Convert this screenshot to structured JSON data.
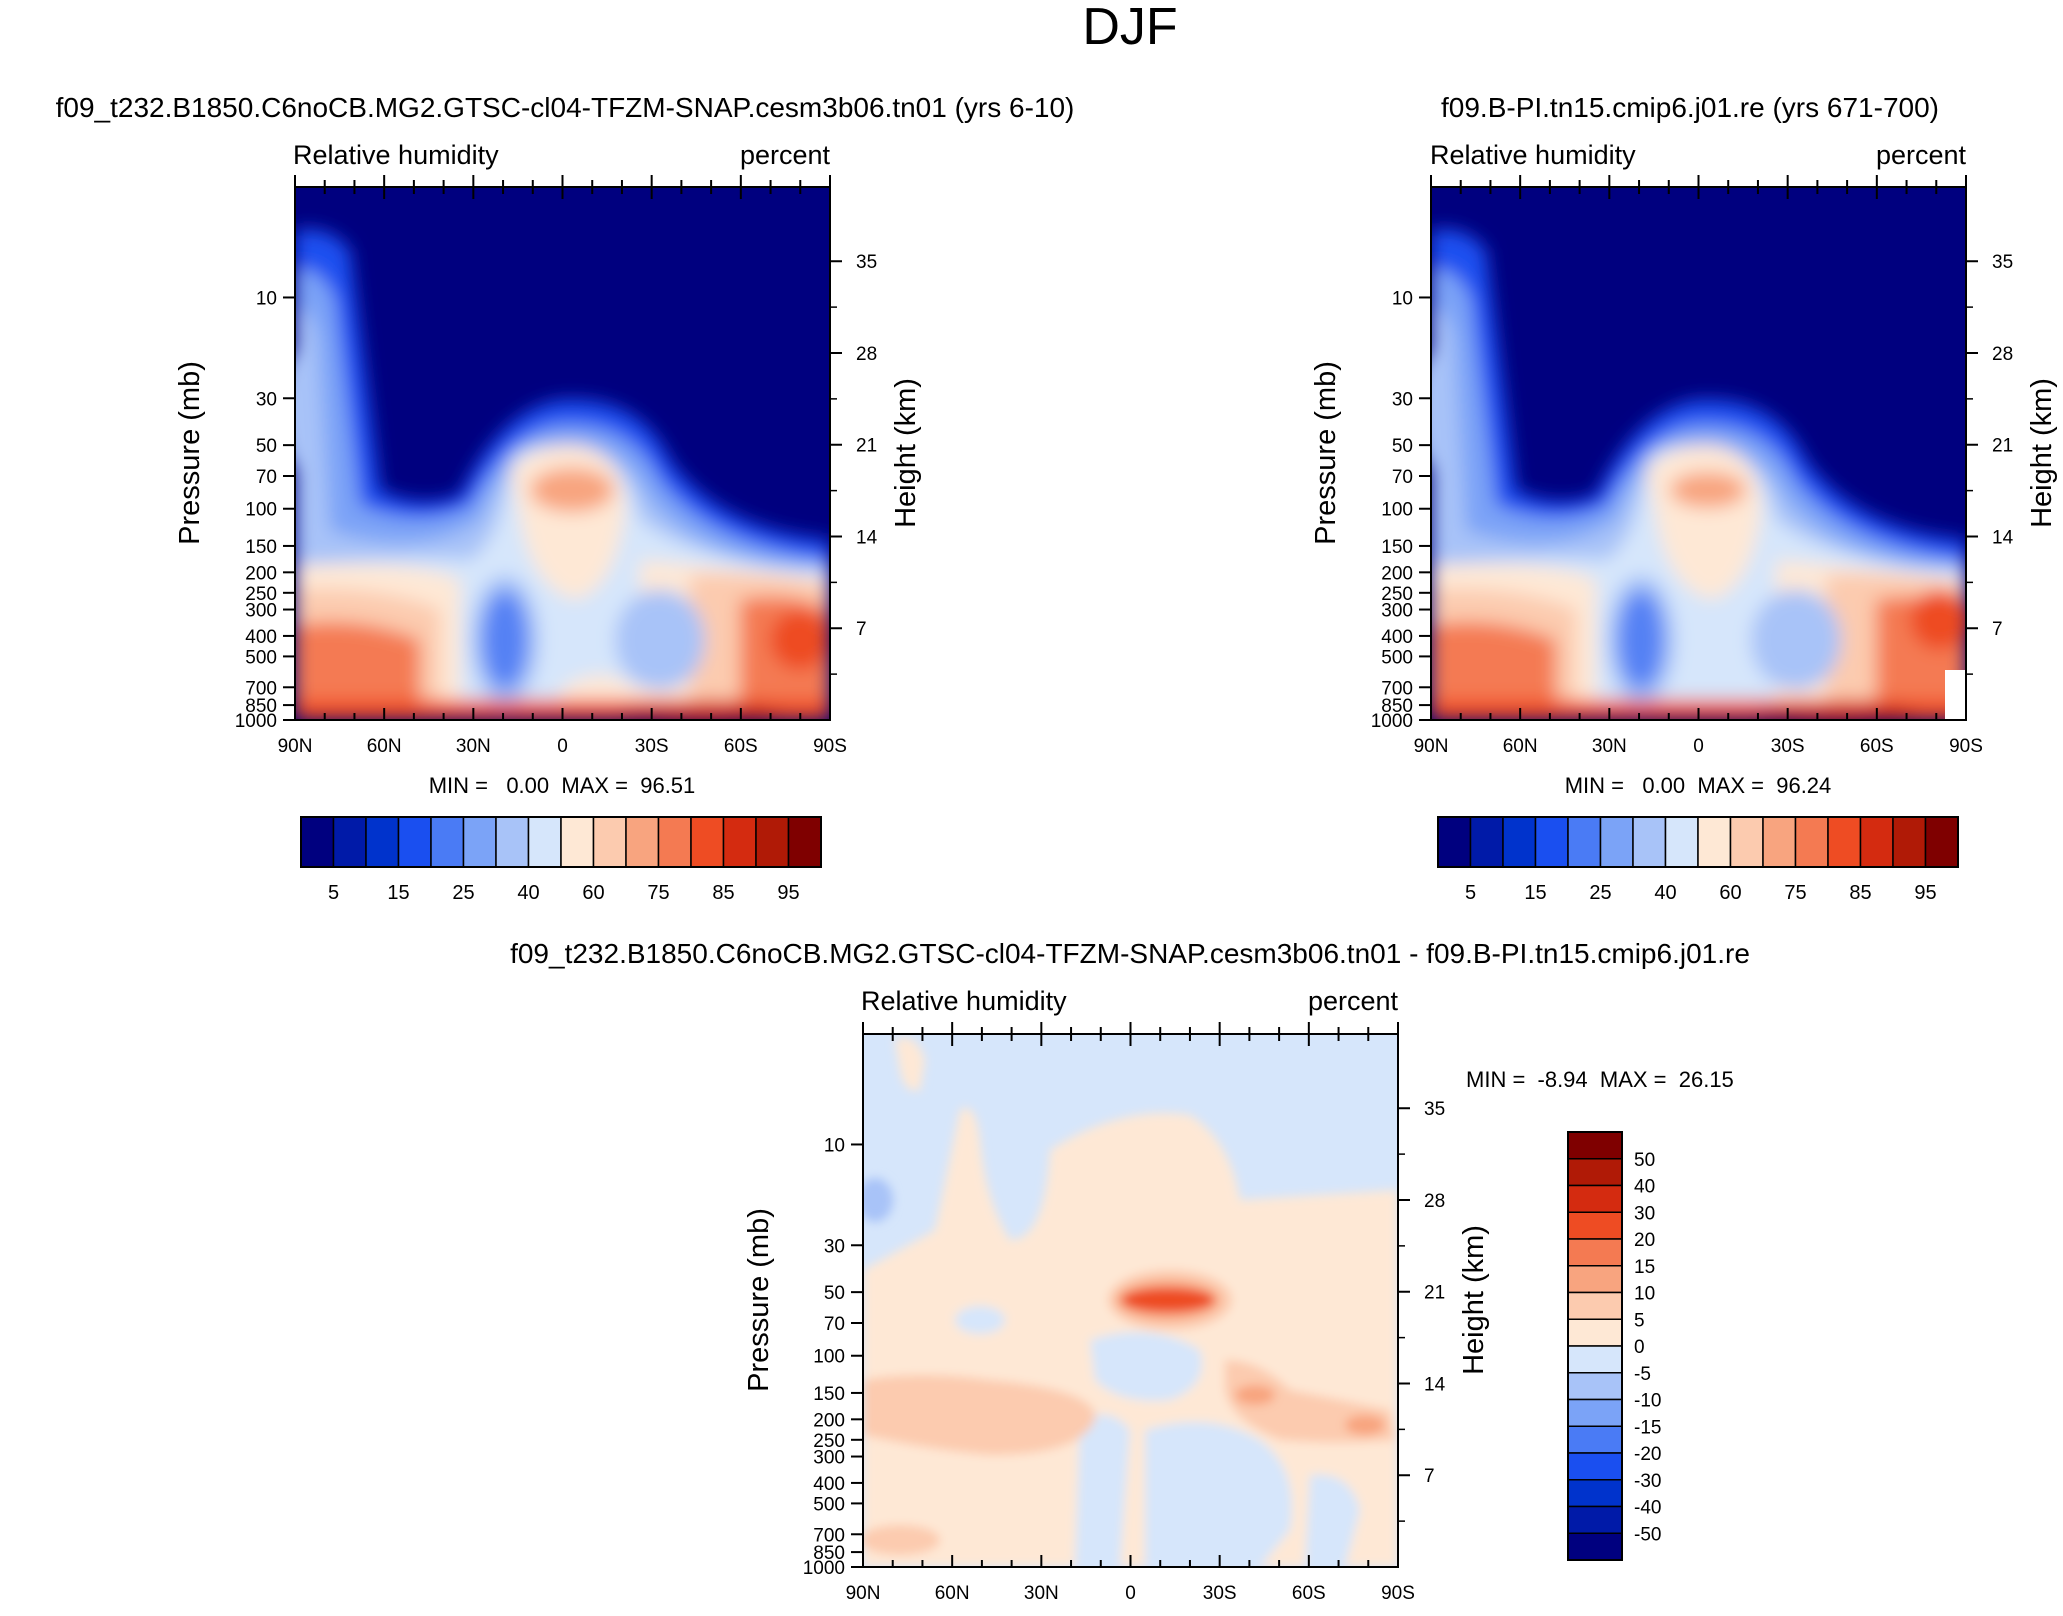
{
  "page_title": "DJF",
  "colors": {
    "levels_rh": [
      "#00007f",
      "#001aa8",
      "#0033cc",
      "#1a4ff0",
      "#4a7bf5",
      "#7ba3f7",
      "#a8c3f8",
      "#d6e6fb",
      "#fee8d5",
      "#fccbaf",
      "#f8a47f",
      "#f47a52",
      "#ee4c23",
      "#d42b10",
      "#b01a06",
      "#7f0000"
    ],
    "levels_diff": [
      "#00007f",
      "#001aa8",
      "#0033cc",
      "#1a4ff0",
      "#4a7bf5",
      "#7ba3f7",
      "#a8c3f8",
      "#d6e6fb",
      "#fee8d5",
      "#fccbaf",
      "#f8a47f",
      "#f47a52",
      "#ee4c23",
      "#d42b10",
      "#b01a06",
      "#7f0000"
    ]
  },
  "chart_data": [
    {
      "type": "heatmap",
      "panel": "left",
      "title": "f09_t232.B1850.C6noCB.MG2.GTSC-cl04-TFZM-SNAP.cesm3b06.tn01 (yrs 6-10)",
      "variable": "Relative humidity",
      "units": "percent",
      "xlabel": "",
      "ylabel": "Pressure (mb)",
      "y2label": "Height (km)",
      "x_ticks": [
        "90N",
        "60N",
        "30N",
        "0",
        "30S",
        "60S",
        "90S"
      ],
      "y_ticks": [
        "10",
        "30",
        "50",
        "70",
        "100",
        "150",
        "200",
        "250",
        "300",
        "400",
        "500",
        "700",
        "850",
        "1000"
      ],
      "y2_ticks": [
        "35",
        "28",
        "21",
        "14",
        "7"
      ],
      "min_max": "MIN =   0.00  MAX =  96.51",
      "colorbar_labels": [
        "5",
        "15",
        "25",
        "40",
        "60",
        "75",
        "85",
        "95"
      ],
      "min": 0.0,
      "max": 96.51
    },
    {
      "type": "heatmap",
      "panel": "right",
      "title": "f09.B-PI.tn15.cmip6.j01.re (yrs 671-700)",
      "variable": "Relative humidity",
      "units": "percent",
      "xlabel": "",
      "ylabel": "Pressure (mb)",
      "y2label": "Height (km)",
      "x_ticks": [
        "90N",
        "60N",
        "30N",
        "0",
        "30S",
        "60S",
        "90S"
      ],
      "y_ticks": [
        "10",
        "30",
        "50",
        "70",
        "100",
        "150",
        "200",
        "250",
        "300",
        "400",
        "500",
        "700",
        "850",
        "1000"
      ],
      "y2_ticks": [
        "35",
        "28",
        "21",
        "14",
        "7"
      ],
      "min_max": "MIN =   0.00  MAX =  96.24",
      "colorbar_labels": [
        "5",
        "15",
        "25",
        "40",
        "60",
        "75",
        "85",
        "95"
      ],
      "min": 0.0,
      "max": 96.24
    },
    {
      "type": "heatmap",
      "panel": "diff",
      "title": "f09_t232.B1850.C6noCB.MG2.GTSC-cl04-TFZM-SNAP.cesm3b06.tn01 - f09.B-PI.tn15.cmip6.j01.re",
      "variable": "Relative humidity",
      "units": "percent",
      "xlabel": "",
      "ylabel": "Pressure (mb)",
      "y2label": "Height (km)",
      "x_ticks": [
        "90N",
        "60N",
        "30N",
        "0",
        "30S",
        "60S",
        "90S"
      ],
      "y_ticks": [
        "10",
        "30",
        "50",
        "70",
        "100",
        "150",
        "200",
        "250",
        "300",
        "400",
        "500",
        "700",
        "850",
        "1000"
      ],
      "y2_ticks": [
        "35",
        "28",
        "21",
        "14",
        "7"
      ],
      "min_max": "MIN =  -8.94  MAX =  26.15",
      "colorbar_labels": [
        "50",
        "40",
        "30",
        "20",
        "15",
        "10",
        "5",
        "0",
        "-5",
        "-10",
        "-15",
        "-20",
        "-30",
        "-40",
        "-50"
      ],
      "min": -8.94,
      "max": 26.15
    }
  ]
}
